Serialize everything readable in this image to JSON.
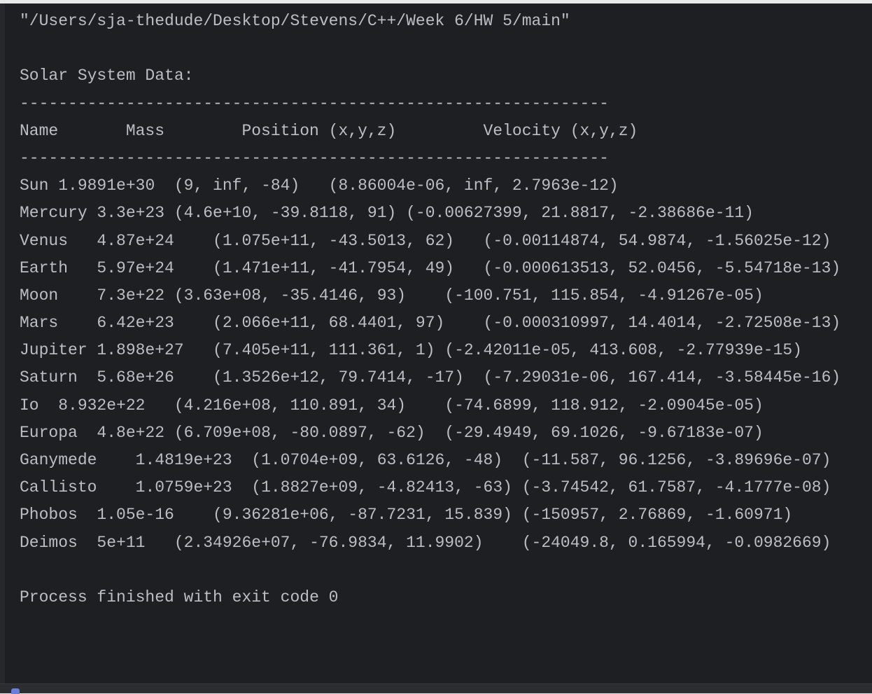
{
  "console": {
    "command": "\"/Users/sja-thedude/Desktop/Stevens/C++/Week 6/HW 5/main\"",
    "title": "Solar System Data:",
    "separator": "-------------------------------------------------------------",
    "headers": [
      "Name",
      "Mass",
      "Position (x,y,z)",
      "Velocity (x,y,z)"
    ],
    "rows": [
      {
        "name": "Sun",
        "mass": "1.9891e+30",
        "position": "(9, inf, -84)",
        "velocity": "(8.86004e-06, inf, 2.7963e-12)"
      },
      {
        "name": "Mercury",
        "mass": "3.3e+23",
        "position": "(4.6e+10, -39.8118, 91)",
        "velocity": "(-0.00627399, 21.8817, -2.38686e-11)"
      },
      {
        "name": "Venus",
        "mass": "4.87e+24",
        "position": "(1.075e+11, -43.5013, 62)",
        "velocity": "(-0.00114874, 54.9874, -1.56025e-12)"
      },
      {
        "name": "Earth",
        "mass": "5.97e+24",
        "position": "(1.471e+11, -41.7954, 49)",
        "velocity": "(-0.000613513, 52.0456, -5.54718e-13)"
      },
      {
        "name": "Moon",
        "mass": "7.3e+22",
        "position": "(3.63e+08, -35.4146, 93)",
        "velocity": "(-100.751, 115.854, -4.91267e-05)"
      },
      {
        "name": "Mars",
        "mass": "6.42e+23",
        "position": "(2.066e+11, 68.4401, 97)",
        "velocity": "(-0.000310997, 14.4014, -2.72508e-13)"
      },
      {
        "name": "Jupiter",
        "mass": "1.898e+27",
        "position": "(7.405e+11, 111.361, 1)",
        "velocity": "(-2.42011e-05, 413.608, -2.77939e-15)"
      },
      {
        "name": "Saturn",
        "mass": "5.68e+26",
        "position": "(1.3526e+12, 79.7414, -17)",
        "velocity": "(-7.29031e-06, 167.414, -3.58445e-16)"
      },
      {
        "name": "Io",
        "mass": "8.932e+22",
        "position": "(4.216e+08, 110.891, 34)",
        "velocity": "(-74.6899, 118.912, -2.09045e-05)"
      },
      {
        "name": "Europa",
        "mass": "4.8e+22",
        "position": "(6.709e+08, -80.0897, -62)",
        "velocity": "(-29.4949, 69.1026, -9.67183e-07)"
      },
      {
        "name": "Ganymede",
        "mass": "1.4819e+23",
        "position": "(1.0704e+09, 63.6126, -48)",
        "velocity": "(-11.587, 96.1256, -3.89696e-07)"
      },
      {
        "name": "Callisto",
        "mass": "1.0759e+23",
        "position": "(1.8827e+09, -4.82413, -63)",
        "velocity": "(-3.74542, 61.7587, -4.1777e-08)"
      },
      {
        "name": "Phobos",
        "mass": "1.05e-16",
        "position": "(9.36281e+06, -87.7231, 15.839)",
        "velocity": "(-150957, 2.76869, -1.60971)"
      },
      {
        "name": "Deimos",
        "mass": "5e+11",
        "position": "(2.34926e+07, -76.9834, 11.9902)",
        "velocity": "(-24049.8, 0.165994, -0.0982669)"
      }
    ],
    "exit_message": "Process finished with exit code 0"
  },
  "colors": {
    "background": "#1e1f22",
    "text": "#bcbec4",
    "status_bar": "#2b2d30"
  }
}
